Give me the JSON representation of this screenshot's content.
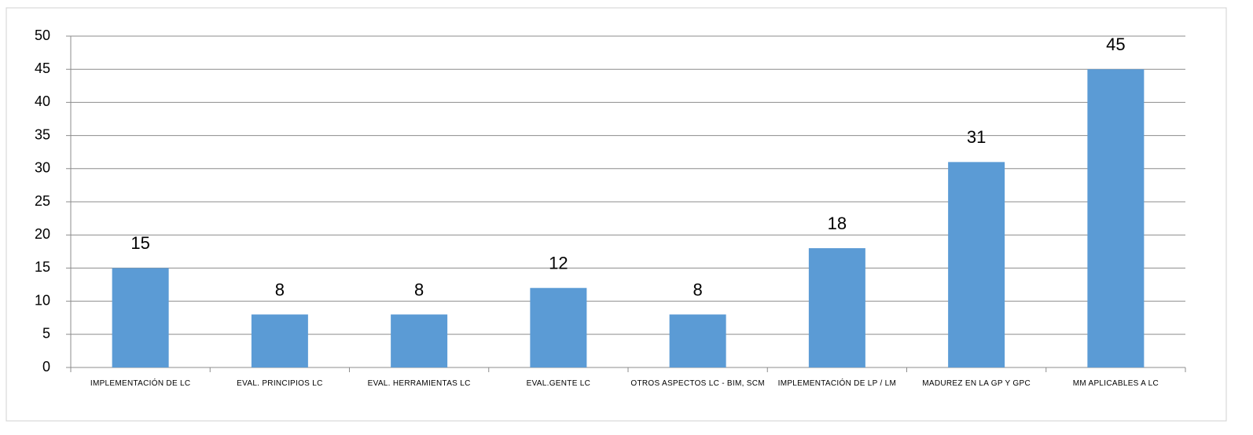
{
  "chart_data": {
    "type": "bar",
    "categories": [
      "IMPLEMENTACIÓN DE LC",
      "EVAL. PRINCIPIOS LC",
      "EVAL. HERRAMIENTAS LC",
      "EVAL.GENTE LC",
      "OTROS ASPECTOS LC - BIM, SCM",
      "IMPLEMENTACIÓN DE LP / LM",
      "MADUREZ EN LA GP Y GPC",
      "MM APLICABLES A LC"
    ],
    "values": [
      15,
      8,
      8,
      12,
      8,
      18,
      31,
      45
    ],
    "color": "#5b9bd5",
    "ylim": [
      0,
      50
    ],
    "yticks": [
      0,
      5,
      10,
      15,
      20,
      25,
      30,
      35,
      40,
      45,
      50
    ],
    "grid": true
  }
}
